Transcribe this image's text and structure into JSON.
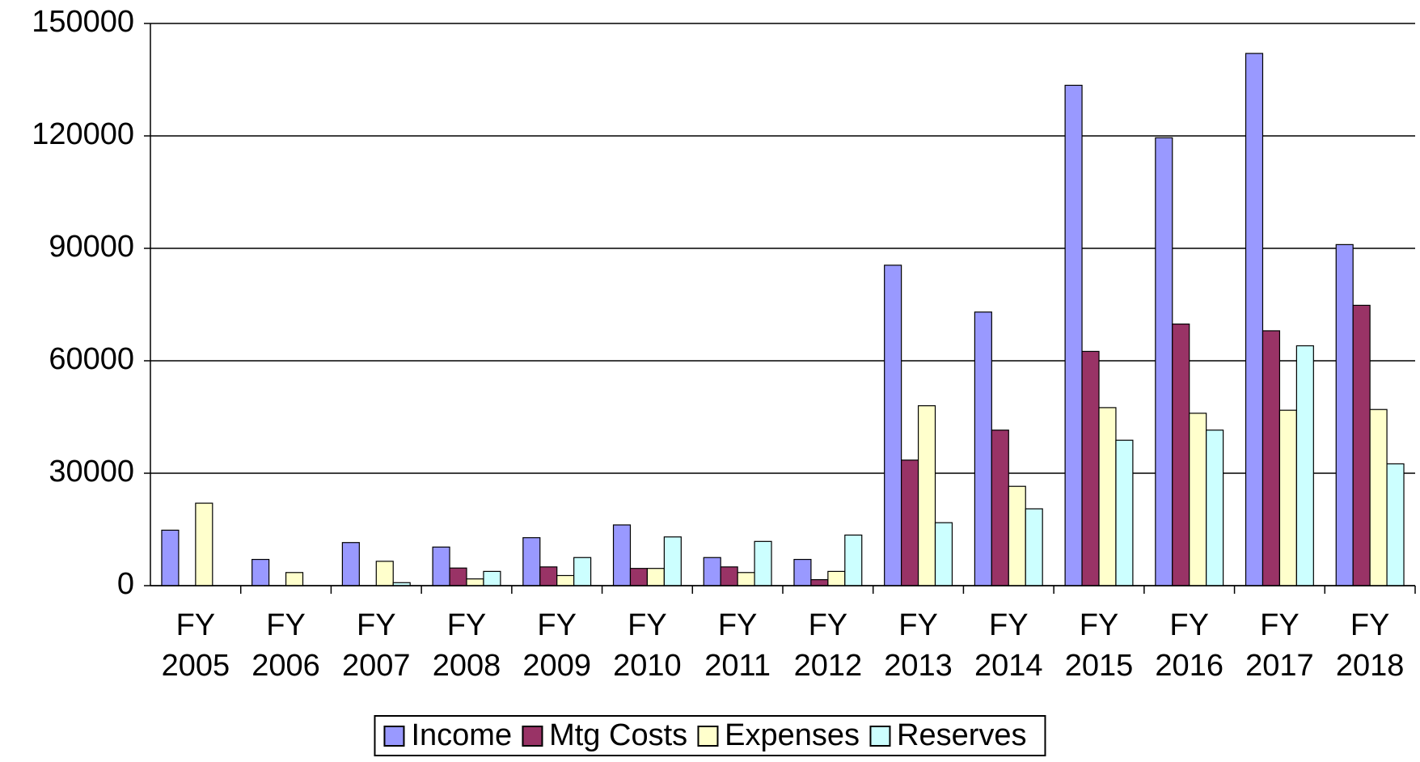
{
  "chart_data": {
    "type": "bar",
    "categories": [
      "FY 2005",
      "FY 2006",
      "FY 2007",
      "FY 2008",
      "FY 2009",
      "FY 2010",
      "FY 2011",
      "FY 2012",
      "FY 2013",
      "FY 2014",
      "FY 2015",
      "FY 2016",
      "FY 2017",
      "FY 2018"
    ],
    "series": [
      {
        "name": "Income",
        "color": "#9999ff",
        "values": [
          14800,
          7000,
          11500,
          10300,
          12800,
          16200,
          7500,
          7000,
          85500,
          73000,
          133500,
          119500,
          142000,
          91000
        ]
      },
      {
        "name": "Mtg Costs",
        "color": "#993366",
        "values": [
          0,
          0,
          0,
          4700,
          5000,
          4600,
          5000,
          1600,
          33500,
          41500,
          62500,
          69800,
          68000,
          74800
        ]
      },
      {
        "name": "Expenses",
        "color": "#ffffcc",
        "values": [
          22000,
          3500,
          6500,
          1800,
          2700,
          4600,
          3500,
          3800,
          48000,
          26500,
          47500,
          46000,
          46800,
          47000
        ]
      },
      {
        "name": "Reserves",
        "color": "#ccffff",
        "values": [
          0,
          0,
          800,
          3800,
          7500,
          13000,
          11800,
          13500,
          16800,
          20500,
          38800,
          41500,
          64000,
          32500
        ]
      }
    ],
    "ylim": [
      0,
      150000
    ],
    "yticks": [
      0,
      30000,
      60000,
      90000,
      120000,
      150000
    ],
    "grid": true,
    "legend": "bottom"
  }
}
